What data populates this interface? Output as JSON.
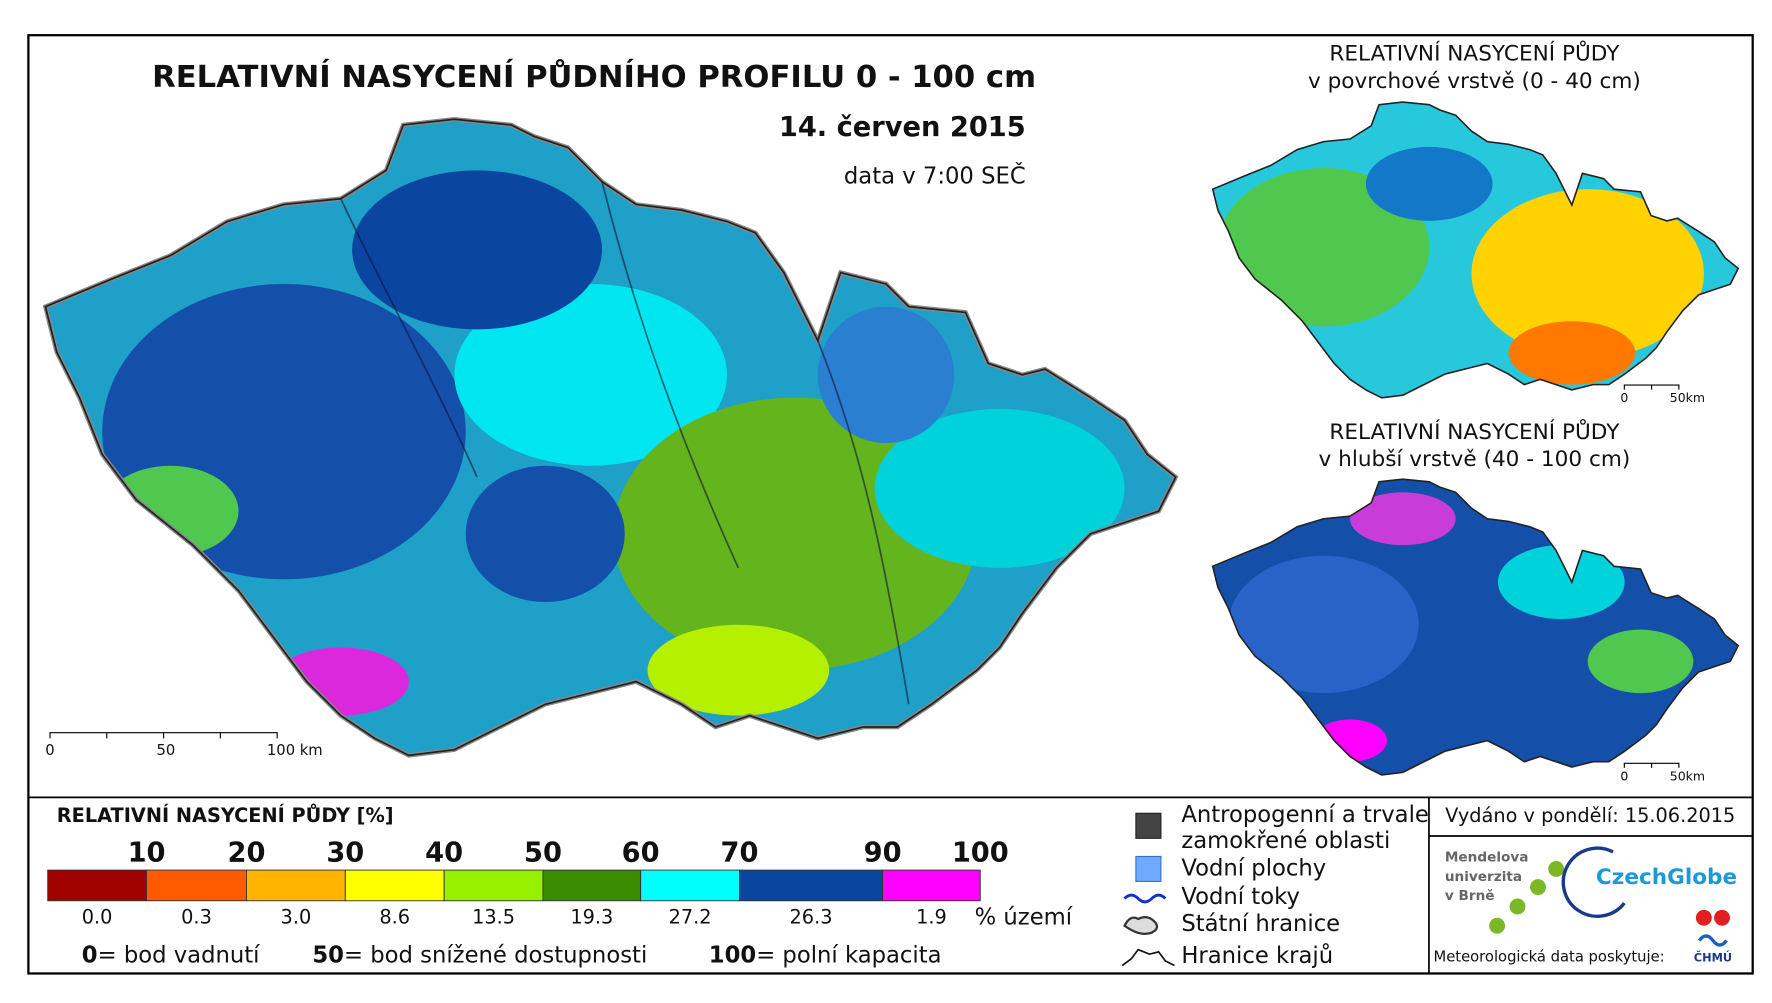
{
  "main_map": {
    "title": "RELATIVNÍ NASYCENÍ PŮDNÍHO PROFILU 0 - 100 cm",
    "date": "14. červen 2015",
    "time": "data v 7:00 SEČ",
    "scale": [
      "0",
      "50",
      "100 km"
    ]
  },
  "inset_maps": [
    {
      "title": [
        "RELATIVNÍ NASYCENÍ PŮDY",
        "v povrchové vrstvě (0 - 40 cm)"
      ],
      "scale": [
        "0",
        "50km"
      ]
    },
    {
      "title": [
        "RELATIVNÍ NASYCENÍ PŮDY",
        "v hlubší vrstvě (40 - 100 cm)"
      ],
      "scale": [
        "0",
        "50km"
      ]
    }
  ],
  "legend": {
    "title": "RELATIVNÍ NASYCENÍ PŮDY [%]",
    "share_unit": "% území",
    "segments": [
      {
        "color": "#a00000",
        "upper": "10",
        "share": "0.0"
      },
      {
        "color": "#ff5a00",
        "upper": "20",
        "share": "0.3"
      },
      {
        "color": "#ffb400",
        "upper": "30",
        "share": "3.0"
      },
      {
        "color": "#ffff00",
        "upper": "40",
        "share": "8.6"
      },
      {
        "color": "#96f000",
        "upper": "50",
        "share": "13.5"
      },
      {
        "color": "#3c8c00",
        "upper": "60",
        "share": "19.3"
      },
      {
        "color": "#00ffff",
        "upper": "70",
        "share": "27.2"
      },
      {
        "color": "#0a46a0",
        "upper": "90",
        "share": "26.3"
      },
      {
        "color": "#ff00ff",
        "upper": "100",
        "share": "1.9"
      }
    ],
    "definitions": [
      {
        "value": "0",
        "text": "= bod vadnutí"
      },
      {
        "value": "50",
        "text": "= bod snížené dostupnosti"
      },
      {
        "value": "100",
        "text": "= polní kapacita"
      }
    ]
  },
  "symbols": [
    "Antropogenní a trvale",
    "zamokřené oblasti",
    "Vodní plochy",
    "Vodní toky",
    "Státní hranice",
    "Hranice krajů"
  ],
  "footer": {
    "issued": "Vydáno v pondělí: 15.06.2015",
    "university": [
      "Mendelova",
      "univerzita",
      "v Brně"
    ],
    "institute": "CzechGlobe",
    "provider": "Meteorologická data poskytuje:",
    "provider_logo": "ČHMÚ"
  }
}
